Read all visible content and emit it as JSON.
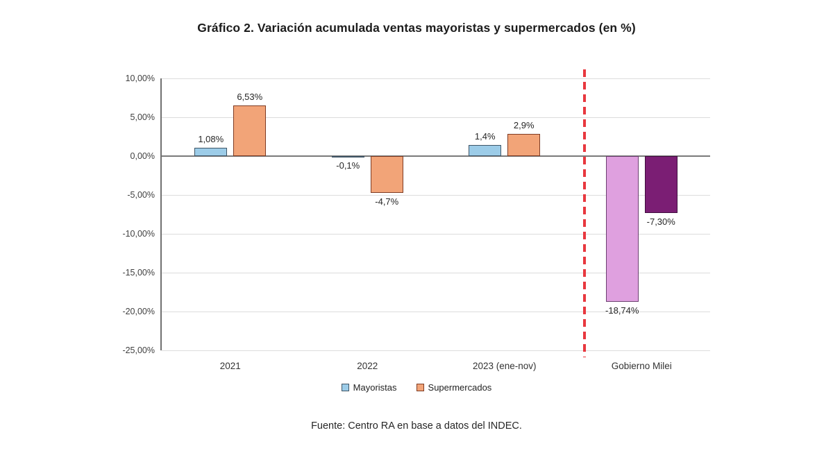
{
  "page": {
    "title": "Gráfico 2. Variación acumulada ventas mayoristas y supermercados (en %)",
    "source_note": "Fuente: Centro RA en base a datos del INDEC."
  },
  "chart_data": {
    "type": "bar",
    "title": "Gráfico 2. Variación acumulada ventas mayoristas y supermercados (en %)",
    "categories": [
      "2021",
      "2022",
      "2023 (ene-nov)",
      "Gobierno Milei"
    ],
    "series": [
      {
        "name": "Mayoristas",
        "values": [
          1.08,
          -0.1,
          1.4,
          -18.74
        ],
        "data_labels": [
          "1,08%",
          "-0,1%",
          "1,4%",
          "-18,74%"
        ],
        "fill_colors": [
          "#9CCCE8",
          "#9CCCE8",
          "#9CCCE8",
          "#DFA0DF"
        ],
        "border_colors": [
          "#3F5566",
          "#3F5566",
          "#3F5566",
          "#6B3F70"
        ]
      },
      {
        "name": "Supermercados",
        "values": [
          6.53,
          -4.7,
          2.9,
          -7.3
        ],
        "data_labels": [
          "6,53%",
          "-4,7%",
          "2,9%",
          "-7,30%"
        ],
        "fill_colors": [
          "#F2A478",
          "#F2A478",
          "#F2A478",
          "#7B1E74"
        ],
        "border_colors": [
          "#7E3B23",
          "#7E3B23",
          "#7E3B23",
          "#400D3E"
        ]
      }
    ],
    "ylim": [
      -25,
      10
    ],
    "yticks": [
      {
        "value": 10,
        "label": "10,00%"
      },
      {
        "value": 5,
        "label": "5,00%"
      },
      {
        "value": 0,
        "label": "0,00%"
      },
      {
        "value": -5,
        "label": "-5,00%"
      },
      {
        "value": -10,
        "label": "-10,00%"
      },
      {
        "value": -15,
        "label": "-15,00%"
      },
      {
        "value": -20,
        "label": "-20,00%"
      },
      {
        "value": -25,
        "label": "-25,00%"
      }
    ],
    "grid": true,
    "legend_position": "bottom",
    "legend": [
      {
        "label": "Mayoristas",
        "color": "#9CCCE8",
        "border": "#3F5566"
      },
      {
        "label": "Supermercados",
        "color": "#F2A478",
        "border": "#7E3B23"
      }
    ],
    "separator_line": {
      "color": "#E8383F",
      "style": "dashed",
      "after_category": "2023 (ene-nov)"
    }
  }
}
